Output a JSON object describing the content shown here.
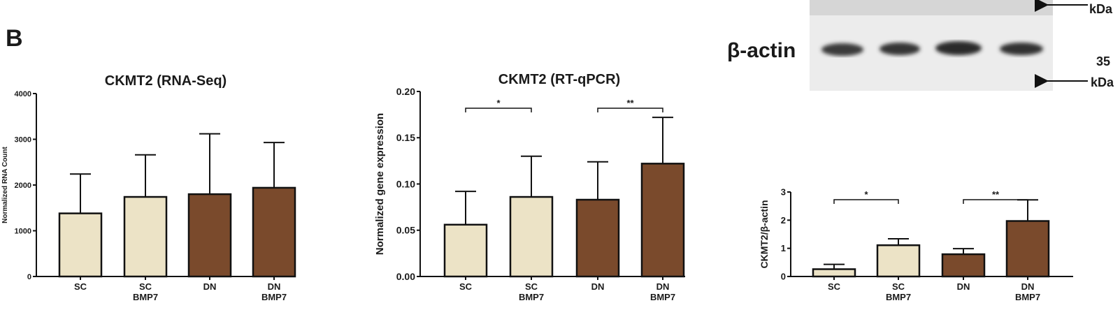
{
  "panel_label": "B",
  "colors": {
    "sc": "#ece3c6",
    "dn": "#7a4a2c",
    "stroke": "#111111"
  },
  "blot": {
    "top_marker": "kDa",
    "actin_label": "β-actin",
    "bottom_marker_value": "35",
    "bottom_marker_unit": "kDa"
  },
  "chart_data": [
    {
      "type": "bar",
      "title": "CKMT2 (RNA-Seq)",
      "ylabel": "Normalized RNA Count",
      "ylim": [
        0,
        4000
      ],
      "yticks": [
        "0",
        "1000",
        "2000",
        "3000",
        "4000"
      ],
      "categories": [
        [
          "SC"
        ],
        [
          "SC",
          "BMP7"
        ],
        [
          "DN"
        ],
        [
          "DN",
          "BMP7"
        ]
      ],
      "values": [
        1380,
        1740,
        1800,
        1940
      ],
      "error_upper": [
        2240,
        2660,
        3120,
        2930
      ],
      "significance": []
    },
    {
      "type": "bar",
      "title": "CKMT2 (RT-qPCR)",
      "ylabel": "Normalized gene expression",
      "ylim": [
        0,
        0.2
      ],
      "yticks": [
        "0.00",
        "0.05",
        "0.10",
        "0.15",
        "0.20"
      ],
      "categories": [
        [
          "SC"
        ],
        [
          "SC",
          "BMP7"
        ],
        [
          "DN"
        ],
        [
          "DN",
          "BMP7"
        ]
      ],
      "values": [
        0.056,
        0.086,
        0.083,
        0.122
      ],
      "error_upper": [
        0.092,
        0.13,
        0.124,
        0.172
      ],
      "significance": [
        {
          "from": 0,
          "to": 1,
          "label": "*"
        },
        {
          "from": 2,
          "to": 3,
          "label": "**"
        }
      ]
    },
    {
      "type": "bar",
      "title": "",
      "ylabel": "CKMT2/β-actin",
      "ylim": [
        0,
        3
      ],
      "yticks": [
        "0",
        "1",
        "2",
        "3"
      ],
      "categories": [
        [
          "SC"
        ],
        [
          "SC",
          "BMP7"
        ],
        [
          "DN"
        ],
        [
          "DN",
          "BMP7"
        ]
      ],
      "values": [
        0.26,
        1.11,
        0.79,
        1.97
      ],
      "error_upper": [
        0.43,
        1.34,
        0.99,
        2.72
      ],
      "significance": [
        {
          "from": 0,
          "to": 1,
          "label": "*"
        },
        {
          "from": 2,
          "to": 3,
          "label": "**"
        }
      ]
    }
  ]
}
